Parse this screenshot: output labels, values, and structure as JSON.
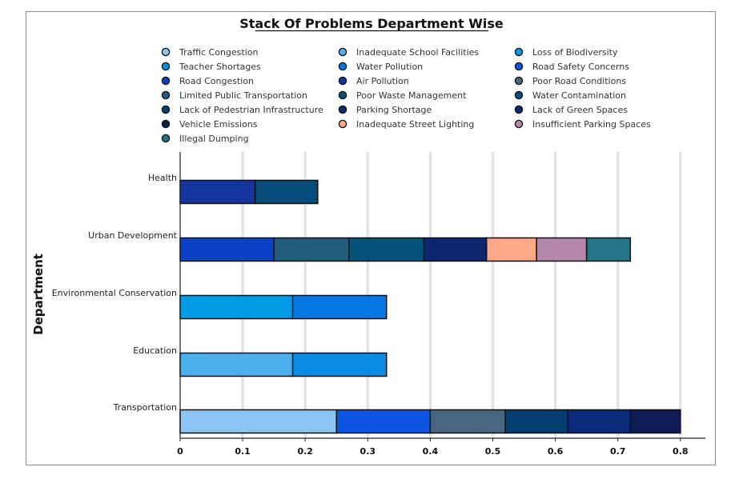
{
  "chart_data": {
    "type": "bar",
    "orientation": "horizontal",
    "stacked": true,
    "title": "Stack Of Problems Department Wise",
    "ylabel": "Department",
    "xlabel": "",
    "xlim": [
      0,
      0.8
    ],
    "xticks": [
      "0",
      "0.1",
      "0.2",
      "0.3",
      "0.4",
      "0.5",
      "0.6",
      "0.7",
      "0.8"
    ],
    "grid": "vertical",
    "legend_position": "top",
    "categories": [
      "Transportation",
      "Education",
      "Environmental Conservation",
      "Urban Development",
      "Health"
    ],
    "legend": [
      {
        "name": "Traffic Congestion",
        "color": "#8CC5F4"
      },
      {
        "name": "Inadequate School Facilities",
        "color": "#4CB0EE"
      },
      {
        "name": "Loss of Biodiversity",
        "color": "#009CE8"
      },
      {
        "name": "Teacher Shortages",
        "color": "#0A8CE4"
      },
      {
        "name": "Water Pollution",
        "color": "#0777E6"
      },
      {
        "name": "Road Safety Concerns",
        "color": "#0B55E2"
      },
      {
        "name": "Road Congestion",
        "color": "#0B41C6"
      },
      {
        "name": "Air Pollution",
        "color": "#14349E"
      },
      {
        "name": "Poor Road Conditions",
        "color": "#476680"
      },
      {
        "name": "Limited Public Transportation",
        "color": "#225C7B"
      },
      {
        "name": "Poor Waste Management",
        "color": "#03527A"
      },
      {
        "name": "Water Contamination",
        "color": "#064C7B"
      },
      {
        "name": "Lack of Pedestrian Infrastructure",
        "color": "#043E71"
      },
      {
        "name": "Parking Shortage",
        "color": "#0A2A7A"
      },
      {
        "name": "Lack of Green Spaces",
        "color": "#0C2670"
      },
      {
        "name": "Vehicle Emissions",
        "color": "#0E1C55"
      },
      {
        "name": "Inadequate Street Lighting",
        "color": "#FEA987"
      },
      {
        "name": "Insufficient Parking Spaces",
        "color": "#B687AD"
      },
      {
        "name": "Illegal Dumping",
        "color": "#247587"
      }
    ],
    "stacks": [
      {
        "category": "Transportation",
        "segments": [
          {
            "name": "Traffic Congestion",
            "value": 0.25
          },
          {
            "name": "Road Safety Concerns",
            "value": 0.15
          },
          {
            "name": "Poor Road Conditions",
            "value": 0.12
          },
          {
            "name": "Lack of Pedestrian Infrastructure",
            "value": 0.1
          },
          {
            "name": "Parking Shortage",
            "value": 0.1
          },
          {
            "name": "Vehicle Emissions",
            "value": 0.08
          }
        ]
      },
      {
        "category": "Education",
        "segments": [
          {
            "name": "Inadequate School Facilities",
            "value": 0.18
          },
          {
            "name": "Teacher Shortages",
            "value": 0.15
          }
        ]
      },
      {
        "category": "Environmental Conservation",
        "segments": [
          {
            "name": "Loss of Biodiversity",
            "value": 0.18
          },
          {
            "name": "Water Pollution",
            "value": 0.15
          }
        ]
      },
      {
        "category": "Urban Development",
        "segments": [
          {
            "name": "Road Congestion",
            "value": 0.15
          },
          {
            "name": "Limited Public Transportation",
            "value": 0.12
          },
          {
            "name": "Poor Waste Management",
            "value": 0.12
          },
          {
            "name": "Lack of Green Spaces",
            "value": 0.1
          },
          {
            "name": "Inadequate Street Lighting",
            "value": 0.08
          },
          {
            "name": "Insufficient Parking Spaces",
            "value": 0.08
          },
          {
            "name": "Illegal Dumping",
            "value": 0.07
          }
        ]
      },
      {
        "category": "Health",
        "segments": [
          {
            "name": "Air Pollution",
            "value": 0.12
          },
          {
            "name": "Water Contamination",
            "value": 0.1
          }
        ]
      }
    ]
  }
}
